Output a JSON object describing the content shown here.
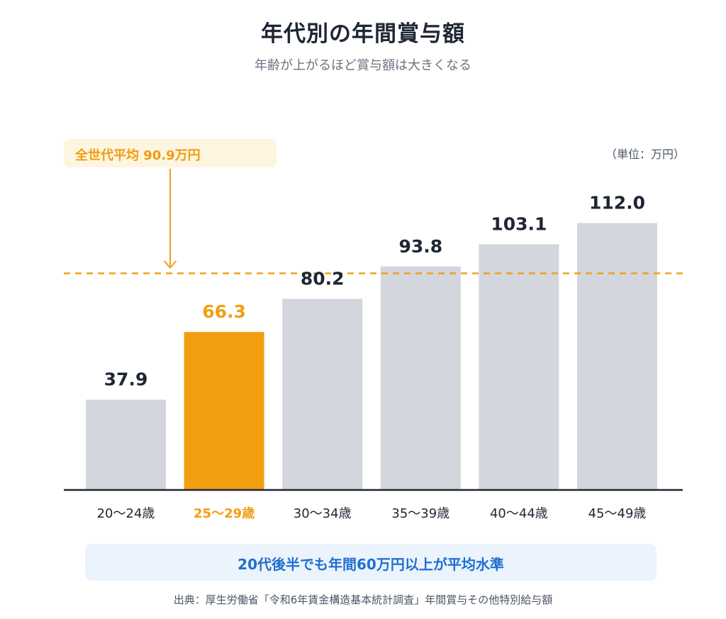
{
  "header": {
    "title": "年代別の年間賞与額",
    "subtitle": "年齢が上がるほど賞与額は大きくなる"
  },
  "unit_label": "（単位：万円）",
  "average": {
    "label": "全世代平均 90.9万円",
    "value": 90.9
  },
  "note": "20代後半でも年間60万円以上が平均水準",
  "source": "出典：厚生労働省「令和6年賃金構造基本統計調査」年間賞与その他特別給与額",
  "colors": {
    "bar_default": "#d3d6dd",
    "bar_highlight": "#f19f10",
    "average_line": "#f0a01c",
    "axis": "#1f2633",
    "value_text": "#1f2633",
    "label_text": "#1f2633"
  },
  "chart_data": {
    "type": "bar",
    "title": "年代別の年間賞与額",
    "subtitle": "年齢が上がるほど賞与額は大きくなる",
    "categories": [
      "20〜24歳",
      "25〜29歳",
      "30〜34歳",
      "35〜39歳",
      "40〜44歳",
      "45〜49歳"
    ],
    "values": [
      37.9,
      66.3,
      80.2,
      93.8,
      103.1,
      112.0
    ],
    "value_labels": [
      "37.9",
      "66.3",
      "80.2",
      "93.8",
      "103.1",
      "112.0"
    ],
    "highlight_index": 1,
    "reference_line": 90.9,
    "ylim": [
      0,
      122
    ],
    "unit": "万円",
    "grid": false,
    "legend": "none"
  }
}
